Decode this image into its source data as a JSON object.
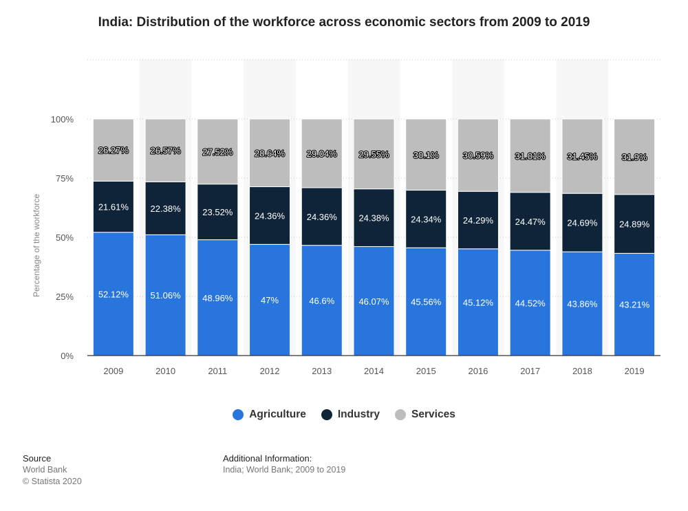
{
  "title": "India: Distribution of the workforce across economic sectors from 2009 to 2019",
  "colors": {
    "Agriculture": "#2876dd",
    "Industry": "#0f2438",
    "Services": "#bdbdbd"
  },
  "chart_data": {
    "type": "bar",
    "stacked": true,
    "title": "India: Distribution of the workforce across economic sectors from 2009 to 2019",
    "xlabel": "",
    "ylabel": "Percentage of the workforce",
    "ylim": [
      0,
      100
    ],
    "y_ticks": [
      "0%",
      "25%",
      "50%",
      "75%",
      "100%"
    ],
    "grid": true,
    "legend_position": "bottom",
    "categories": [
      "2009",
      "2010",
      "2011",
      "2012",
      "2013",
      "2014",
      "2015",
      "2016",
      "2017",
      "2018",
      "2019"
    ],
    "series": [
      {
        "name": "Agriculture",
        "values": [
          52.12,
          51.06,
          48.96,
          47,
          46.6,
          46.07,
          45.56,
          45.12,
          44.52,
          43.86,
          43.21
        ],
        "labels": [
          "52.12%",
          "51.06%",
          "48.96%",
          "47%",
          "46.6%",
          "46.07%",
          "45.56%",
          "45.12%",
          "44.52%",
          "43.86%",
          "43.21%"
        ]
      },
      {
        "name": "Industry",
        "values": [
          21.61,
          22.38,
          23.52,
          24.36,
          24.36,
          24.38,
          24.34,
          24.29,
          24.47,
          24.69,
          24.89
        ],
        "labels": [
          "21.61%",
          "22.38%",
          "23.52%",
          "24.36%",
          "24.36%",
          "24.38%",
          "24.34%",
          "24.29%",
          "24.47%",
          "24.69%",
          "24.89%"
        ]
      },
      {
        "name": "Services",
        "values": [
          26.27,
          26.57,
          27.52,
          28.64,
          29.04,
          29.55,
          30.1,
          30.59,
          31.01,
          31.45,
          31.9
        ],
        "labels": [
          "26.27%",
          "26.57%",
          "27.52%",
          "28.64%",
          "29.04%",
          "29.55%",
          "30.1%",
          "30.59%",
          "31.01%",
          "31.45%",
          "31.9%"
        ]
      }
    ]
  },
  "footer": {
    "source_heading": "Source",
    "source_line1": "World Bank",
    "source_line2": "© Statista 2020",
    "info_heading": "Additional Information:",
    "info_text": "India; World Bank; 2009 to 2019"
  }
}
